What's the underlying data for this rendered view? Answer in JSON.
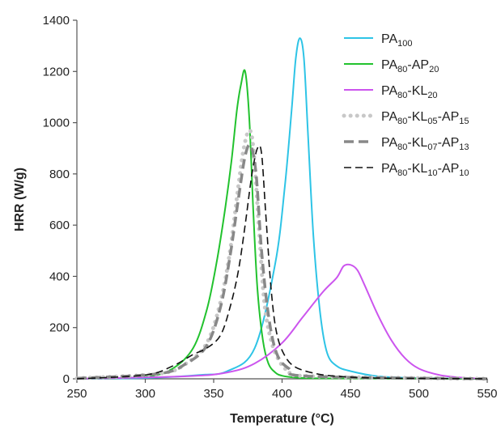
{
  "chart_data": {
    "type": "line",
    "xlabel": "Temperature (°C)",
    "ylabel": "HRR (W/g)",
    "xlim": [
      250,
      550
    ],
    "ylim": [
      0,
      1400
    ],
    "xticks": [
      "250",
      "300",
      "350",
      "400",
      "450",
      "500",
      "550"
    ],
    "yticks": [
      "0",
      "200",
      "400",
      "600",
      "800",
      "1000",
      "1200",
      "1400"
    ],
    "grid": false,
    "legend_position": "top-right",
    "series": [
      {
        "name": "PA100",
        "name_parts": [
          {
            "t": "PA"
          },
          {
            "t": "100",
            "sub": true
          }
        ],
        "color": "#2ec4e6",
        "dash": "solid",
        "x": [
          250,
          300,
          340,
          360,
          380,
          395,
          402,
          407,
          410,
          413,
          416,
          419,
          423,
          428,
          433,
          440,
          450,
          470,
          500,
          550
        ],
        "y": [
          0,
          3,
          15,
          30,
          120,
          450,
          750,
          1050,
          1250,
          1330,
          1250,
          950,
          550,
          250,
          100,
          50,
          30,
          10,
          3,
          0
        ]
      },
      {
        "name": "PA80-AP20",
        "name_parts": [
          {
            "t": "PA"
          },
          {
            "t": "80",
            "sub": true
          },
          {
            "t": "-AP"
          },
          {
            "t": "20",
            "sub": true
          }
        ],
        "color": "#22c22e",
        "dash": "solid",
        "x": [
          250,
          300,
          320,
          335,
          345,
          352,
          358,
          363,
          367,
          370,
          373,
          376,
          379,
          382,
          386,
          390,
          395,
          400,
          410,
          430,
          550
        ],
        "y": [
          0,
          8,
          40,
          120,
          270,
          450,
          650,
          850,
          1050,
          1150,
          1200,
          1020,
          650,
          350,
          150,
          60,
          25,
          12,
          5,
          2,
          0
        ]
      },
      {
        "name": "PA80-KL20",
        "name_parts": [
          {
            "t": "PA"
          },
          {
            "t": "80",
            "sub": true
          },
          {
            "t": "-KL"
          },
          {
            "t": "20",
            "sub": true
          }
        ],
        "color": "#cc55ee",
        "dash": "solid",
        "x": [
          250,
          330,
          360,
          380,
          400,
          415,
          430,
          440,
          445,
          450,
          455,
          460,
          470,
          480,
          490,
          500,
          515,
          530,
          550
        ],
        "y": [
          0,
          10,
          25,
          60,
          140,
          240,
          340,
          395,
          440,
          445,
          425,
          370,
          250,
          150,
          80,
          40,
          15,
          5,
          0
        ]
      },
      {
        "name": "PA80-KL05-AP15",
        "name_parts": [
          {
            "t": "PA"
          },
          {
            "t": "80",
            "sub": true
          },
          {
            "t": "-KL"
          },
          {
            "t": "05",
            "sub": true
          },
          {
            "t": "-AP"
          },
          {
            "t": "15",
            "sub": true
          }
        ],
        "color": "#c8c8c8",
        "dash": "dots",
        "x": [
          250,
          310,
          330,
          345,
          355,
          362,
          368,
          372,
          376,
          379,
          383,
          387,
          392,
          398,
          405,
          420,
          550
        ],
        "y": [
          2,
          20,
          60,
          140,
          300,
          500,
          750,
          900,
          970,
          900,
          600,
          300,
          150,
          70,
          30,
          10,
          0
        ]
      },
      {
        "name": "PA80-KL07-AP13",
        "name_parts": [
          {
            "t": "PA"
          },
          {
            "t": "80",
            "sub": true
          },
          {
            "t": "-KL"
          },
          {
            "t": "07",
            "sub": true
          },
          {
            "t": "-AP"
          },
          {
            "t": "13",
            "sub": true
          }
        ],
        "color": "#888888",
        "dash": "longdash",
        "x": [
          250,
          310,
          330,
          345,
          355,
          362,
          368,
          373,
          377,
          381,
          385,
          390,
          396,
          405,
          420,
          550
        ],
        "y": [
          2,
          20,
          60,
          130,
          280,
          480,
          700,
          870,
          910,
          800,
          500,
          250,
          100,
          40,
          10,
          0
        ]
      },
      {
        "name": "PA80-KL10-AP10",
        "name_parts": [
          {
            "t": "PA"
          },
          {
            "t": "80",
            "sub": true
          },
          {
            "t": "-KL"
          },
          {
            "t": "10",
            "sub": true
          },
          {
            "t": "-AP"
          },
          {
            "t": "10",
            "sub": true
          }
        ],
        "color": "#111111",
        "dash": "dash",
        "x": [
          250,
          300,
          320,
          335,
          345,
          355,
          362,
          368,
          373,
          378,
          382,
          385,
          388,
          392,
          396,
          402,
          410,
          425,
          440,
          470,
          550
        ],
        "y": [
          0,
          15,
          50,
          95,
          120,
          170,
          280,
          420,
          600,
          800,
          900,
          880,
          650,
          350,
          180,
          90,
          45,
          20,
          10,
          3,
          0
        ]
      }
    ]
  }
}
